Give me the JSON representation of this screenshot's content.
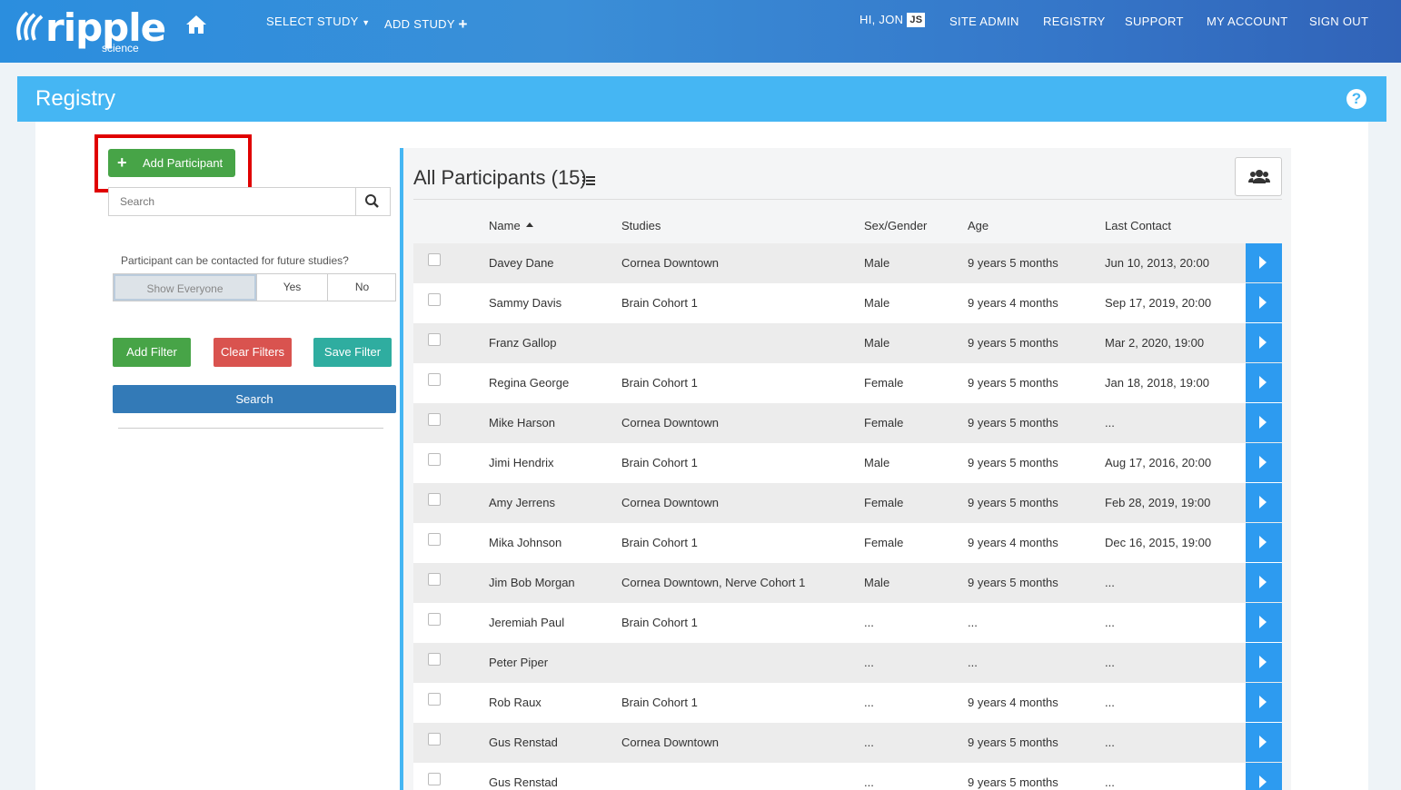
{
  "brand": {
    "name": "ripple",
    "sub": "science"
  },
  "nav": {
    "select_study": "SELECT STUDY",
    "add_study": "ADD STUDY",
    "greeting": "HI, JON",
    "initials": "JS",
    "site_admin": "SITE ADMIN",
    "registry": "REGISTRY",
    "support": "SUPPORT",
    "my_account": "MY ACCOUNT",
    "sign_out": "SIGN OUT"
  },
  "page_title": "Registry",
  "sidebar": {
    "add_participant": "Add Participant",
    "search_placeholder": "Search",
    "contact_question": "Participant can be contacted for future studies?",
    "contact_options": [
      "Show Everyone",
      "Yes",
      "No"
    ],
    "add_filter": "Add Filter",
    "clear_filters": "Clear Filters",
    "save_filter": "Save Filter",
    "search_button": "Search"
  },
  "list": {
    "title": "All Participants (15)",
    "columns": {
      "name": "Name",
      "studies": "Studies",
      "sex": "Sex/Gender",
      "age": "Age",
      "last_contact": "Last Contact"
    },
    "rows": [
      {
        "name": "Davey Dane",
        "studies": "Cornea Downtown",
        "sex": "Male",
        "age": "9 years 5 months",
        "last": "Jun 10, 2013, 20:00"
      },
      {
        "name": "Sammy Davis",
        "studies": "Brain Cohort 1",
        "sex": "Male",
        "age": "9 years 4 months",
        "last": "Sep 17, 2019, 20:00"
      },
      {
        "name": "Franz Gallop",
        "studies": "",
        "sex": "Male",
        "age": "9 years 5 months",
        "last": "Mar 2, 2020, 19:00"
      },
      {
        "name": "Regina George",
        "studies": "Brain Cohort 1",
        "sex": "Female",
        "age": "9 years 5 months",
        "last": "Jan 18, 2018, 19:00"
      },
      {
        "name": "Mike Harson",
        "studies": "Cornea Downtown",
        "sex": "Female",
        "age": "9 years 5 months",
        "last": "..."
      },
      {
        "name": "Jimi Hendrix",
        "studies": "Brain Cohort 1",
        "sex": "Male",
        "age": "9 years 5 months",
        "last": "Aug 17, 2016, 20:00"
      },
      {
        "name": "Amy Jerrens",
        "studies": "Cornea Downtown",
        "sex": "Female",
        "age": "9 years 5 months",
        "last": "Feb 28, 2019, 19:00"
      },
      {
        "name": "Mika Johnson",
        "studies": "Brain Cohort 1",
        "sex": "Female",
        "age": "9 years 4 months",
        "last": "Dec 16, 2015, 19:00"
      },
      {
        "name": "Jim Bob Morgan",
        "studies": "Cornea Downtown, Nerve Cohort 1",
        "sex": "Male",
        "age": "9 years 5 months",
        "last": "..."
      },
      {
        "name": "Jeremiah Paul",
        "studies": "Brain Cohort 1",
        "sex": "...",
        "age": "...",
        "last": "..."
      },
      {
        "name": "Peter Piper",
        "studies": "",
        "sex": "...",
        "age": "...",
        "last": "..."
      },
      {
        "name": "Rob Raux",
        "studies": "Brain Cohort 1",
        "sex": "...",
        "age": "9 years 4 months",
        "last": "..."
      },
      {
        "name": "Gus Renstad",
        "studies": "Cornea Downtown",
        "sex": "...",
        "age": "9 years 5 months",
        "last": "..."
      },
      {
        "name": "Gus Renstad",
        "studies": "",
        "sex": "...",
        "age": "9 years 5 months",
        "last": "..."
      }
    ]
  }
}
